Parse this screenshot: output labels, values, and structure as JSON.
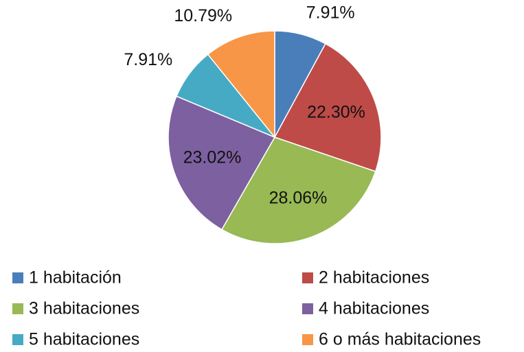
{
  "chart_data": {
    "type": "pie",
    "categories": [
      "1 habitación",
      "2 habitaciones",
      "3 habitaciones",
      "4 habitaciones",
      "5 habitaciones",
      "6 o más habitaciones"
    ],
    "values": [
      7.91,
      22.3,
      28.06,
      23.02,
      7.91,
      10.79
    ],
    "value_labels": [
      "7.91%",
      "22.30%",
      "28.06%",
      "23.02%",
      "7.91%",
      "10.79%"
    ],
    "colors": [
      "#4a7ebb",
      "#be4b48",
      "#98b954",
      "#7d60a0",
      "#46aac5",
      "#f79646"
    ],
    "legend": "bottom"
  }
}
